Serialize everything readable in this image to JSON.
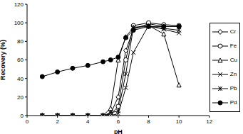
{
  "chart_data": {
    "type": "line",
    "x_label": "pH",
    "y_label": "Recovery (%)",
    "x": [
      1,
      2,
      3,
      4,
      5,
      5.5,
      6,
      6.5,
      7,
      8,
      9,
      10
    ],
    "xlim": [
      0,
      12
    ],
    "xticks": [
      0,
      2,
      4,
      6,
      8,
      10,
      12
    ],
    "ylim": [
      0,
      120
    ],
    "yticks": [
      0,
      20,
      40,
      60,
      80,
      100,
      120
    ],
    "grid": false,
    "legend": "right",
    "series": [
      {
        "name": "Cr",
        "color": "#000000",
        "marker": "diamond",
        "values": [
          0,
          0,
          0,
          0,
          0,
          2,
          20,
          70,
          93,
          99,
          96,
          96
        ]
      },
      {
        "name": "Fe",
        "color": "#000000",
        "marker": "circle",
        "values": [
          0,
          0,
          0,
          0,
          0,
          1,
          10,
          60,
          97,
          100,
          98,
          97
        ]
      },
      {
        "name": "Cu",
        "color": "#000000",
        "marker": "triangle",
        "values": [
          0,
          0,
          0,
          0,
          0,
          8,
          60,
          85,
          95,
          97,
          88,
          33
        ]
      },
      {
        "name": "Zn",
        "color": "#000000",
        "marker": "x",
        "values": [
          0,
          0,
          0,
          0,
          0,
          0,
          2,
          30,
          68,
          97,
          93,
          89
        ]
      },
      {
        "name": "Pb",
        "color": "#000000",
        "marker": "asterisk",
        "values": [
          0,
          0,
          0,
          0,
          0,
          3,
          5,
          45,
          95,
          96,
          94,
          92
        ]
      },
      {
        "name": "Pd",
        "color": "#000000",
        "marker": "dot",
        "values": [
          42,
          47,
          51,
          54,
          58,
          60,
          63,
          84,
          92,
          96,
          96,
          96
        ]
      }
    ]
  }
}
